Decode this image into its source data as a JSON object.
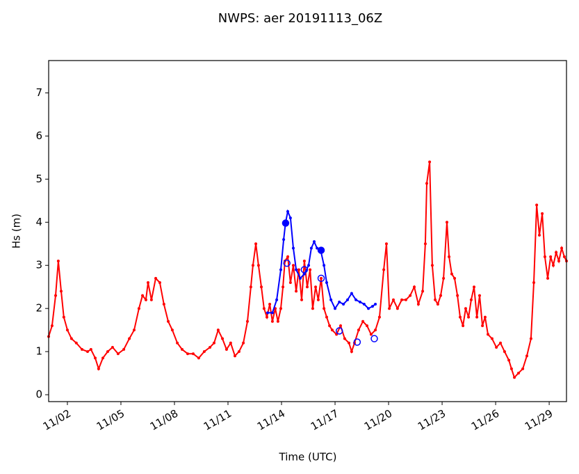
{
  "chart_data": {
    "type": "line",
    "title": "NWPS: aer 20191113_06Z",
    "xlabel": "Time (UTC)",
    "ylabel": "Hs (m)",
    "xlim": [
      0.95,
      29.97
    ],
    "ylim": [
      -0.16,
      7.75
    ],
    "xticks": [
      {
        "value": 2,
        "label": "11/02"
      },
      {
        "value": 5,
        "label": "11/05"
      },
      {
        "value": 8,
        "label": "11/08"
      },
      {
        "value": 11,
        "label": "11/11"
      },
      {
        "value": 14,
        "label": "11/14"
      },
      {
        "value": 17,
        "label": "11/17"
      },
      {
        "value": 20,
        "label": "11/20"
      },
      {
        "value": 23,
        "label": "11/23"
      },
      {
        "value": 26,
        "label": "11/26"
      },
      {
        "value": 29,
        "label": "11/29"
      }
    ],
    "yticks": [
      0,
      1,
      2,
      3,
      4,
      5,
      6,
      7
    ],
    "series": [
      {
        "color": "#ff0000",
        "style": "line",
        "x": [
          0.95,
          1.14,
          1.34,
          1.49,
          1.65,
          1.8,
          2.0,
          2.23,
          2.5,
          2.82,
          3.13,
          3.32,
          3.56,
          3.75,
          3.99,
          4.26,
          4.53,
          4.84,
          5.16,
          5.47,
          5.74,
          6.01,
          6.21,
          6.4,
          6.52,
          6.71,
          6.95,
          7.18,
          7.41,
          7.65,
          7.88,
          8.16,
          8.43,
          8.74,
          9.05,
          9.36,
          9.67,
          9.99,
          10.22,
          10.45,
          10.69,
          10.92,
          11.15,
          11.39,
          11.62,
          11.86,
          12.09,
          12.28,
          12.4,
          12.56,
          12.71,
          12.87,
          13.02,
          13.18,
          13.34,
          13.49,
          13.65,
          13.8,
          13.96,
          14.08,
          14.19,
          14.35,
          14.5,
          14.66,
          14.82,
          14.97,
          15.13,
          15.28,
          15.44,
          15.6,
          15.75,
          15.91,
          16.06,
          16.22,
          16.38,
          16.53,
          16.69,
          16.84,
          17.08,
          17.31,
          17.54,
          17.78,
          17.93,
          18.09,
          18.32,
          18.56,
          18.79,
          19.02,
          19.26,
          19.49,
          19.73,
          19.88,
          20.04,
          20.27,
          20.5,
          20.74,
          20.97,
          21.21,
          21.44,
          21.67,
          21.91,
          22.06,
          22.14,
          22.3,
          22.45,
          22.61,
          22.76,
          22.92,
          23.08,
          23.27,
          23.39,
          23.54,
          23.7,
          23.86,
          24.01,
          24.17,
          24.32,
          24.48,
          24.63,
          24.79,
          24.95,
          25.1,
          25.26,
          25.41,
          25.57,
          25.8,
          26.04,
          26.27,
          26.5,
          26.74,
          26.89,
          27.05,
          27.28,
          27.52,
          27.75,
          27.98,
          28.14,
          28.3,
          28.45,
          28.61,
          28.76,
          28.92,
          29.08,
          29.23,
          29.39,
          29.54,
          29.7,
          29.85,
          29.97
        ],
        "values": [
          1.35,
          1.6,
          2.3,
          3.1,
          2.4,
          1.8,
          1.5,
          1.3,
          1.2,
          1.05,
          1.0,
          1.05,
          0.85,
          0.6,
          0.85,
          1.0,
          1.1,
          0.95,
          1.05,
          1.3,
          1.5,
          2.0,
          2.3,
          2.2,
          2.6,
          2.2,
          2.7,
          2.6,
          2.1,
          1.7,
          1.5,
          1.2,
          1.05,
          0.95,
          0.95,
          0.85,
          1.0,
          1.1,
          1.2,
          1.5,
          1.3,
          1.05,
          1.2,
          0.9,
          1.0,
          1.2,
          1.7,
          2.5,
          3.0,
          3.5,
          3.0,
          2.5,
          2.0,
          1.8,
          2.1,
          1.7,
          2.0,
          1.7,
          2.0,
          2.5,
          3.1,
          3.2,
          2.6,
          3.0,
          2.4,
          2.9,
          2.2,
          3.1,
          2.5,
          2.9,
          2.0,
          2.5,
          2.2,
          2.7,
          2.0,
          1.8,
          1.6,
          1.5,
          1.4,
          1.6,
          1.3,
          1.2,
          1.0,
          1.2,
          1.5,
          1.7,
          1.6,
          1.4,
          1.5,
          1.8,
          2.9,
          3.5,
          2.0,
          2.2,
          2.0,
          2.2,
          2.2,
          2.3,
          2.5,
          2.1,
          2.4,
          3.5,
          4.9,
          5.4,
          3.0,
          2.2,
          2.1,
          2.3,
          2.7,
          4.0,
          3.2,
          2.8,
          2.7,
          2.3,
          1.8,
          1.6,
          2.0,
          1.8,
          2.2,
          2.5,
          1.8,
          2.3,
          1.6,
          1.8,
          1.4,
          1.3,
          1.1,
          1.2,
          1.0,
          0.8,
          0.6,
          0.4,
          0.5,
          0.6,
          0.9,
          1.3,
          2.6,
          4.4,
          3.7,
          4.2,
          3.2,
          2.7,
          3.2,
          3.0,
          3.3,
          3.1,
          3.4,
          3.2,
          3.1
        ]
      },
      {
        "color": "#0000ff",
        "style": "line",
        "x": [
          13.22,
          13.49,
          13.73,
          13.96,
          14.12,
          14.23,
          14.35,
          14.5,
          14.66,
          14.82,
          15.05,
          15.28,
          15.52,
          15.67,
          15.83,
          15.99,
          16.22,
          16.38,
          16.53,
          16.77,
          17.0,
          17.24,
          17.47,
          17.7,
          17.93,
          18.17,
          18.4,
          18.63,
          18.87,
          19.1,
          19.26
        ],
        "values": [
          1.9,
          1.9,
          2.2,
          2.9,
          3.6,
          4.0,
          4.25,
          4.1,
          3.4,
          2.9,
          2.7,
          2.8,
          3.0,
          3.4,
          3.55,
          3.4,
          3.3,
          3.0,
          2.6,
          2.2,
          2.0,
          2.15,
          2.1,
          2.2,
          2.35,
          2.2,
          2.15,
          2.1,
          2.0,
          2.05,
          2.1
        ]
      },
      {
        "color": "#0000ff",
        "fill": "#0000ff",
        "style": "points",
        "x": [
          14.23,
          16.22
        ],
        "values": [
          3.98,
          3.35
        ]
      },
      {
        "color": "#0000ff",
        "fill": "none",
        "style": "points",
        "x": [
          14.3,
          15.28,
          16.22,
          17.24,
          18.24,
          19.2
        ],
        "values": [
          3.05,
          2.9,
          2.7,
          1.48,
          1.22,
          1.3
        ]
      }
    ]
  }
}
